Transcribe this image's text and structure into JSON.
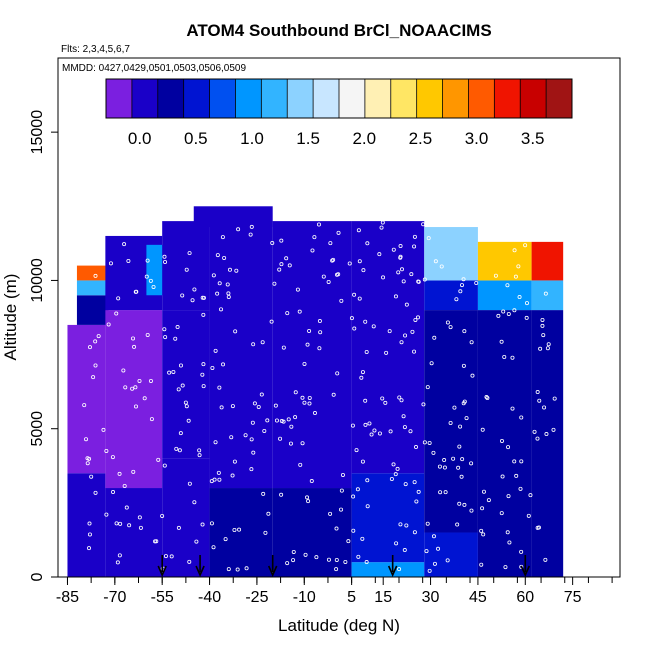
{
  "chart_data": {
    "type": "heatmap",
    "title": "ATOM4 Southbound BrCl_NOAACIMS",
    "flights_label": "Flts: 2,3,4,5,6,7",
    "dates_label": "MMDD: 0427,0429,0501,0503,0506,0509",
    "xlabel": "Latitude (deg N)",
    "ylabel": "Altitude (m)",
    "xlim": [
      -88,
      90
    ],
    "ylim": [
      0,
      17500
    ],
    "x_ticks": [
      -85,
      -70,
      -55,
      -40,
      -25,
      -10,
      5,
      15,
      30,
      45,
      60,
      75
    ],
    "x_tick_labels": [
      "-85",
      "-70",
      "-55",
      "-40",
      "-25",
      "-10",
      "5",
      "15",
      "30",
      "45",
      "60",
      "75"
    ],
    "y_ticks": [
      0,
      5000,
      10000,
      15000
    ],
    "y_tick_labels": [
      "0",
      "5000",
      "10000",
      "15000"
    ],
    "colorbar": {
      "range": [
        -0.3,
        3.85
      ],
      "ticks": [
        0.0,
        0.5,
        1.0,
        1.5,
        2.0,
        2.5,
        3.0,
        3.5
      ],
      "tick_labels": [
        "0.0",
        "0.5",
        "1.0",
        "1.5",
        "2.0",
        "2.5",
        "3.0",
        "3.5"
      ],
      "colors": [
        "#7b1fe0",
        "#1a00c8",
        "#0000a0",
        "#0014d2",
        "#0050f0",
        "#0096ff",
        "#32b4ff",
        "#8cd2ff",
        "#c8e6ff",
        "#f5f5f5",
        "#fff0b4",
        "#ffe664",
        "#ffc800",
        "#ff9600",
        "#ff5a00",
        "#f01400",
        "#c80000",
        "#a01414"
      ]
    },
    "grid": false,
    "legend": "top-center colorbar",
    "sounding_latitudes": [
      -55,
      -43,
      -20,
      18,
      60
    ],
    "cells": [
      {
        "lat": [
          -85,
          -73
        ],
        "alt": [
          0,
          3500
        ],
        "value": 0.05
      },
      {
        "lat": [
          -85,
          -73
        ],
        "alt": [
          3500,
          8500
        ],
        "value": -0.15
      },
      {
        "lat": [
          -82,
          -72
        ],
        "alt": [
          8500,
          9500
        ],
        "value": 0.2
      },
      {
        "lat": [
          -82,
          -72
        ],
        "alt": [
          9500,
          10000
        ],
        "value": 1.2
      },
      {
        "lat": [
          -82,
          -72
        ],
        "alt": [
          10000,
          10500
        ],
        "value": 3.0
      },
      {
        "lat": [
          -73,
          -55
        ],
        "alt": [
          0,
          3000
        ],
        "value": 0.1
      },
      {
        "lat": [
          -73,
          -55
        ],
        "alt": [
          3000,
          9000
        ],
        "value": -0.1
      },
      {
        "lat": [
          -73,
          -55
        ],
        "alt": [
          9000,
          11500
        ],
        "value": 0.15
      },
      {
        "lat": [
          -60,
          -45
        ],
        "alt": [
          9500,
          11200
        ],
        "value": 0.9
      },
      {
        "lat": [
          -55,
          -40
        ],
        "alt": [
          0,
          4000
        ],
        "value": 0.15
      },
      {
        "lat": [
          -55,
          -40
        ],
        "alt": [
          4000,
          9000
        ],
        "value": 0.0
      },
      {
        "lat": [
          -55,
          -40
        ],
        "alt": [
          9000,
          12000
        ],
        "value": 0.1
      },
      {
        "lat": [
          -45,
          -20
        ],
        "alt": [
          11800,
          12500
        ],
        "value": 0.05
      },
      {
        "lat": [
          -40,
          -20
        ],
        "alt": [
          0,
          3000
        ],
        "value": 0.2
      },
      {
        "lat": [
          -40,
          -20
        ],
        "alt": [
          3000,
          12000
        ],
        "value": 0.1
      },
      {
        "lat": [
          -20,
          5
        ],
        "alt": [
          0,
          3000
        ],
        "value": 0.3
      },
      {
        "lat": [
          -20,
          5
        ],
        "alt": [
          3000,
          12000
        ],
        "value": 0.15
      },
      {
        "lat": [
          5,
          28
        ],
        "alt": [
          0,
          500
        ],
        "value": 0.9
      },
      {
        "lat": [
          5,
          28
        ],
        "alt": [
          500,
          3500
        ],
        "value": 0.4
      },
      {
        "lat": [
          5,
          28
        ],
        "alt": [
          3500,
          12000
        ],
        "value": 0.15
      },
      {
        "lat": [
          28,
          45
        ],
        "alt": [
          0,
          1500
        ],
        "value": 0.55
      },
      {
        "lat": [
          28,
          45
        ],
        "alt": [
          1500,
          9000
        ],
        "value": 0.2
      },
      {
        "lat": [
          28,
          45
        ],
        "alt": [
          9000,
          10000
        ],
        "value": 0.6
      },
      {
        "lat": [
          28,
          45
        ],
        "alt": [
          10000,
          11800
        ],
        "value": 1.5
      },
      {
        "lat": [
          45,
          62
        ],
        "alt": [
          0,
          9000
        ],
        "value": 0.3
      },
      {
        "lat": [
          45,
          62
        ],
        "alt": [
          9000,
          10000
        ],
        "value": 0.9
      },
      {
        "lat": [
          45,
          62
        ],
        "alt": [
          10000,
          11300
        ],
        "value": 2.6
      },
      {
        "lat": [
          62,
          72
        ],
        "alt": [
          0,
          9000
        ],
        "value": 0.35
      },
      {
        "lat": [
          62,
          72
        ],
        "alt": [
          9000,
          10000
        ],
        "value": 1.2
      },
      {
        "lat": [
          62,
          72
        ],
        "alt": [
          10000,
          11300
        ],
        "value": 3.3
      }
    ]
  }
}
